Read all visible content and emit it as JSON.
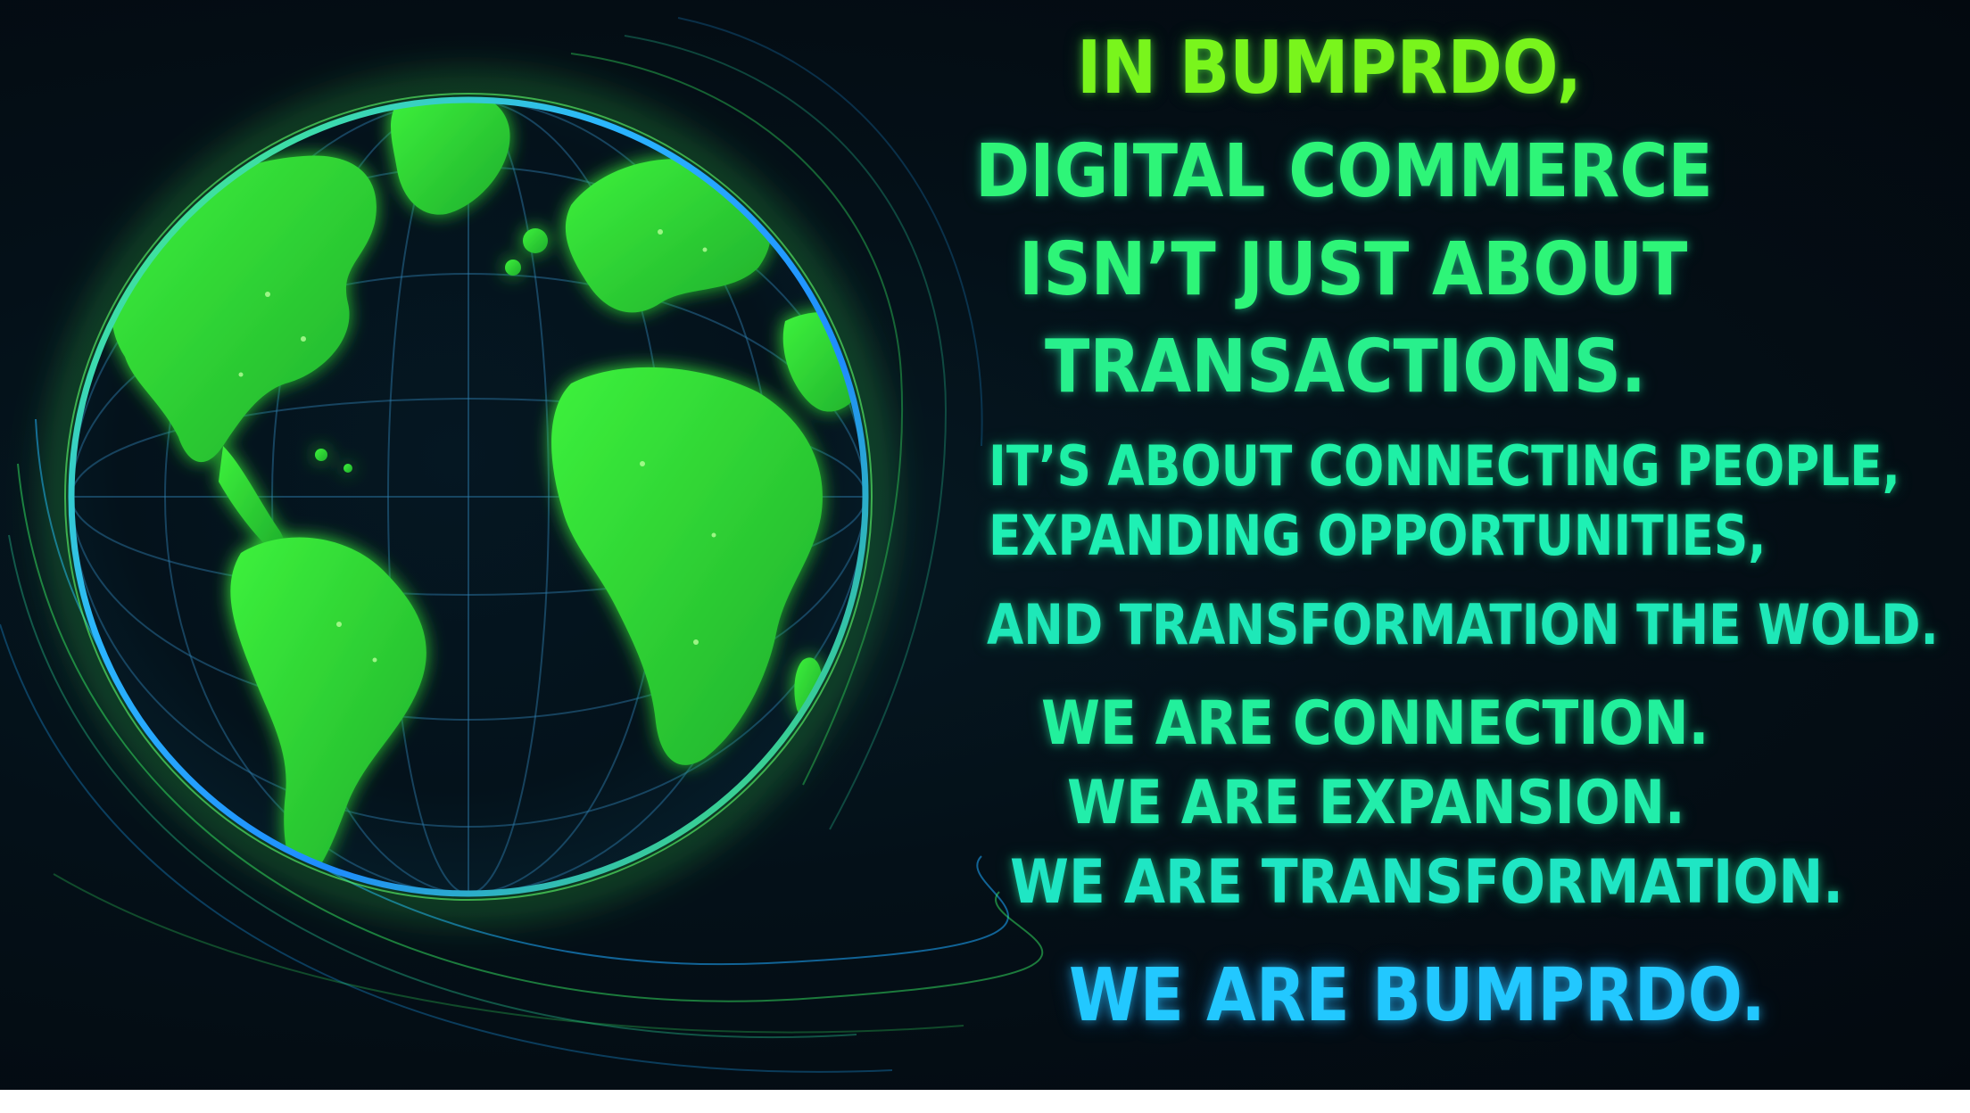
{
  "colors": {
    "background": "#03090f",
    "globe_green": "#3ee63a",
    "ring_green": "#39ff6a",
    "ring_blue": "#1e9bff",
    "text_lime": "#79f51c",
    "text_green": "#2ef578",
    "text_mint": "#1ef0a6",
    "text_cyan": "#1fd6ef",
    "text_blue": "#22c8ff"
  },
  "headline": {
    "line1": "IN BUMPRDO,",
    "line2": "DIGITAL COMMERCE",
    "line3": "ISN’T JUST ABOUT",
    "line4": "TRANSACTIONS."
  },
  "body": {
    "line1": "IT’S ABOUT CONNECTING PEOPLE,",
    "line2": "EXPANDING OPPORTUNITIES,",
    "line3": "AND TRANSFORMATION THE WOLD."
  },
  "statements": {
    "line1": "WE ARE CONNECTION.",
    "line2": "WE ARE EXPANSION.",
    "line3": "WE ARE TRANSFORMATION."
  },
  "closing": "WE ARE BUMPRDO.",
  "icons": {
    "globe": "earth-globe-icon"
  }
}
